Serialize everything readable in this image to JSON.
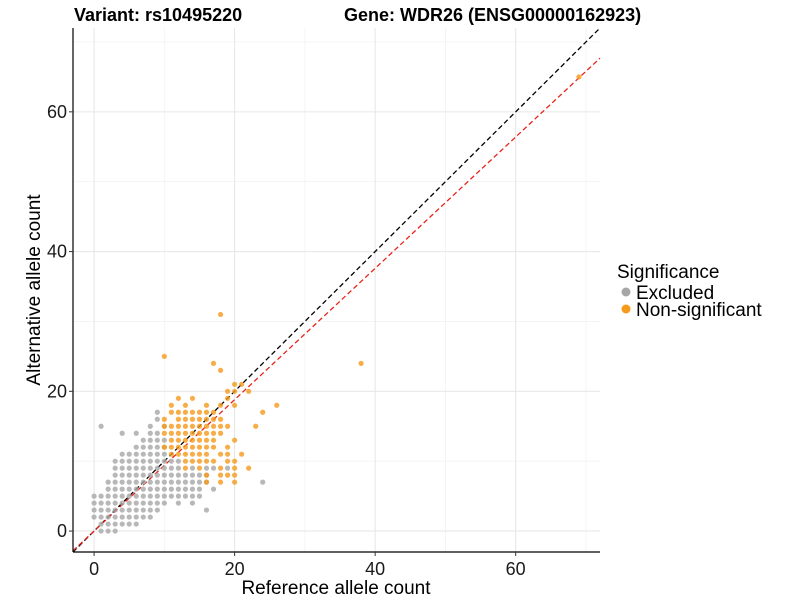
{
  "chart_data": {
    "type": "scatter",
    "title_left": "Variant: rs10495220",
    "title_right": "Gene: WDR26 (ENSG00000162923)",
    "xlabel": "Reference allele count",
    "ylabel": "Alternative allele count",
    "xlim": [
      -3,
      72
    ],
    "ylim": [
      -3,
      72
    ],
    "xticks": [
      0,
      20,
      40,
      60
    ],
    "yticks": [
      0,
      20,
      40,
      60
    ],
    "grid": true,
    "legend": {
      "title": "Significance",
      "position": "right",
      "items": [
        {
          "label": "Excluded",
          "color": "#a6a6a6"
        },
        {
          "label": "Non-significant",
          "color": "#f59a1b"
        }
      ]
    },
    "reference_lines": [
      {
        "style": "dashed",
        "color": "#000000",
        "slope": 1.0,
        "intercept": 0
      },
      {
        "style": "dashed",
        "color": "#e8241a",
        "slope": 0.94,
        "intercept": 0
      }
    ],
    "series": [
      {
        "name": "Excluded",
        "color": "#a6a6a6",
        "points": [
          [
            1,
            0
          ],
          [
            2,
            0
          ],
          [
            3,
            0
          ],
          [
            1,
            1
          ],
          [
            2,
            1
          ],
          [
            3,
            1
          ],
          [
            4,
            1
          ],
          [
            5,
            1
          ],
          [
            6,
            1
          ],
          [
            0,
            2
          ],
          [
            1,
            2
          ],
          [
            2,
            2
          ],
          [
            3,
            2
          ],
          [
            4,
            2
          ],
          [
            5,
            2
          ],
          [
            6,
            2
          ],
          [
            7,
            2
          ],
          [
            8,
            2
          ],
          [
            0,
            3
          ],
          [
            1,
            3
          ],
          [
            2,
            3
          ],
          [
            3,
            3
          ],
          [
            4,
            3
          ],
          [
            5,
            3
          ],
          [
            6,
            3
          ],
          [
            7,
            3
          ],
          [
            8,
            3
          ],
          [
            9,
            3
          ],
          [
            16,
            3
          ],
          [
            0,
            4
          ],
          [
            1,
            4
          ],
          [
            2,
            4
          ],
          [
            3,
            4
          ],
          [
            4,
            4
          ],
          [
            5,
            4
          ],
          [
            6,
            4
          ],
          [
            7,
            4
          ],
          [
            8,
            4
          ],
          [
            9,
            4
          ],
          [
            10,
            4
          ],
          [
            12,
            4
          ],
          [
            14,
            4
          ],
          [
            0,
            5
          ],
          [
            1,
            5
          ],
          [
            2,
            5
          ],
          [
            3,
            5
          ],
          [
            4,
            5
          ],
          [
            5,
            5
          ],
          [
            6,
            5
          ],
          [
            7,
            5
          ],
          [
            8,
            5
          ],
          [
            9,
            5
          ],
          [
            10,
            5
          ],
          [
            11,
            5
          ],
          [
            12,
            5
          ],
          [
            13,
            5
          ],
          [
            14,
            5
          ],
          [
            15,
            5
          ],
          [
            2,
            6
          ],
          [
            3,
            6
          ],
          [
            4,
            6
          ],
          [
            5,
            6
          ],
          [
            6,
            6
          ],
          [
            7,
            6
          ],
          [
            8,
            6
          ],
          [
            9,
            6
          ],
          [
            10,
            6
          ],
          [
            11,
            6
          ],
          [
            12,
            6
          ],
          [
            13,
            6
          ],
          [
            14,
            6
          ],
          [
            15,
            6
          ],
          [
            17,
            6
          ],
          [
            2,
            7
          ],
          [
            3,
            7
          ],
          [
            4,
            7
          ],
          [
            5,
            7
          ],
          [
            6,
            7
          ],
          [
            7,
            7
          ],
          [
            8,
            7
          ],
          [
            9,
            7
          ],
          [
            10,
            7
          ],
          [
            11,
            7
          ],
          [
            12,
            7
          ],
          [
            13,
            7
          ],
          [
            14,
            7
          ],
          [
            15,
            7
          ],
          [
            16,
            7
          ],
          [
            24,
            7
          ],
          [
            3,
            8
          ],
          [
            4,
            8
          ],
          [
            5,
            8
          ],
          [
            6,
            8
          ],
          [
            7,
            8
          ],
          [
            8,
            8
          ],
          [
            9,
            8
          ],
          [
            10,
            8
          ],
          [
            11,
            8
          ],
          [
            12,
            8
          ],
          [
            13,
            8
          ],
          [
            14,
            8
          ],
          [
            15,
            8
          ],
          [
            16,
            8
          ],
          [
            3,
            9
          ],
          [
            4,
            9
          ],
          [
            5,
            9
          ],
          [
            6,
            9
          ],
          [
            7,
            9
          ],
          [
            8,
            9
          ],
          [
            9,
            9
          ],
          [
            10,
            9
          ],
          [
            11,
            9
          ],
          [
            12,
            9
          ],
          [
            14,
            9
          ],
          [
            16,
            9
          ],
          [
            17,
            9
          ],
          [
            19,
            9
          ],
          [
            3,
            10
          ],
          [
            4,
            10
          ],
          [
            5,
            10
          ],
          [
            6,
            10
          ],
          [
            7,
            10
          ],
          [
            8,
            10
          ],
          [
            9,
            10
          ],
          [
            10,
            10
          ],
          [
            11,
            10
          ],
          [
            12,
            10
          ],
          [
            4,
            11
          ],
          [
            5,
            11
          ],
          [
            6,
            11
          ],
          [
            7,
            11
          ],
          [
            8,
            11
          ],
          [
            9,
            11
          ],
          [
            10,
            11
          ],
          [
            6,
            12
          ],
          [
            7,
            12
          ],
          [
            8,
            12
          ],
          [
            9,
            12
          ],
          [
            10,
            12
          ],
          [
            7,
            13
          ],
          [
            8,
            13
          ],
          [
            9,
            13
          ],
          [
            10,
            13
          ],
          [
            4,
            14
          ],
          [
            6,
            14
          ],
          [
            8,
            14
          ],
          [
            9,
            14
          ],
          [
            1,
            15
          ],
          [
            8,
            15
          ],
          [
            10,
            15
          ],
          [
            9,
            16
          ],
          [
            9,
            17
          ]
        ]
      },
      {
        "name": "Non-significant",
        "color": "#f59a1b",
        "points": [
          [
            69,
            65
          ],
          [
            38,
            24
          ],
          [
            18,
            31
          ],
          [
            10,
            25
          ],
          [
            17,
            24
          ],
          [
            18,
            23
          ],
          [
            20,
            21
          ],
          [
            21,
            21
          ],
          [
            19,
            20
          ],
          [
            20,
            20
          ],
          [
            22,
            20
          ],
          [
            12,
            19
          ],
          [
            14,
            19
          ],
          [
            19,
            19
          ],
          [
            11,
            18
          ],
          [
            13,
            18
          ],
          [
            16,
            18
          ],
          [
            18,
            18
          ],
          [
            20,
            18
          ],
          [
            26,
            18
          ],
          [
            11,
            17
          ],
          [
            12,
            17
          ],
          [
            13,
            17
          ],
          [
            14,
            17
          ],
          [
            15,
            17
          ],
          [
            16,
            17
          ],
          [
            17,
            17
          ],
          [
            24,
            17
          ],
          [
            10,
            16
          ],
          [
            12,
            16
          ],
          [
            13,
            16
          ],
          [
            14,
            16
          ],
          [
            15,
            16
          ],
          [
            16,
            16
          ],
          [
            17,
            16
          ],
          [
            18,
            16
          ],
          [
            10,
            15
          ],
          [
            11,
            15
          ],
          [
            12,
            15
          ],
          [
            13,
            15
          ],
          [
            14,
            15
          ],
          [
            15,
            15
          ],
          [
            16,
            15
          ],
          [
            17,
            15
          ],
          [
            18,
            15
          ],
          [
            19,
            15
          ],
          [
            23,
            15
          ],
          [
            10,
            14
          ],
          [
            11,
            14
          ],
          [
            12,
            14
          ],
          [
            13,
            14
          ],
          [
            14,
            14
          ],
          [
            15,
            14
          ],
          [
            16,
            14
          ],
          [
            17,
            14
          ],
          [
            18,
            14
          ],
          [
            11,
            13
          ],
          [
            12,
            13
          ],
          [
            13,
            13
          ],
          [
            14,
            13
          ],
          [
            15,
            13
          ],
          [
            16,
            13
          ],
          [
            17,
            13
          ],
          [
            20,
            13
          ],
          [
            10,
            12
          ],
          [
            11,
            12
          ],
          [
            12,
            12
          ],
          [
            13,
            12
          ],
          [
            14,
            12
          ],
          [
            15,
            12
          ],
          [
            16,
            12
          ],
          [
            17,
            12
          ],
          [
            19,
            12
          ],
          [
            11,
            11
          ],
          [
            12,
            11
          ],
          [
            13,
            11
          ],
          [
            14,
            11
          ],
          [
            15,
            11
          ],
          [
            16,
            11
          ],
          [
            18,
            11
          ],
          [
            19,
            11
          ],
          [
            21,
            11
          ],
          [
            13,
            10
          ],
          [
            14,
            10
          ],
          [
            15,
            10
          ],
          [
            16,
            10
          ],
          [
            17,
            10
          ],
          [
            19,
            10
          ],
          [
            20,
            10
          ],
          [
            13,
            9
          ],
          [
            15,
            9
          ],
          [
            18,
            9
          ],
          [
            20,
            9
          ],
          [
            22,
            9
          ],
          [
            16,
            8
          ],
          [
            18,
            8
          ],
          [
            19,
            8
          ],
          [
            20,
            8
          ],
          [
            16,
            7
          ],
          [
            18,
            7
          ],
          [
            20,
            7
          ]
        ]
      }
    ]
  }
}
